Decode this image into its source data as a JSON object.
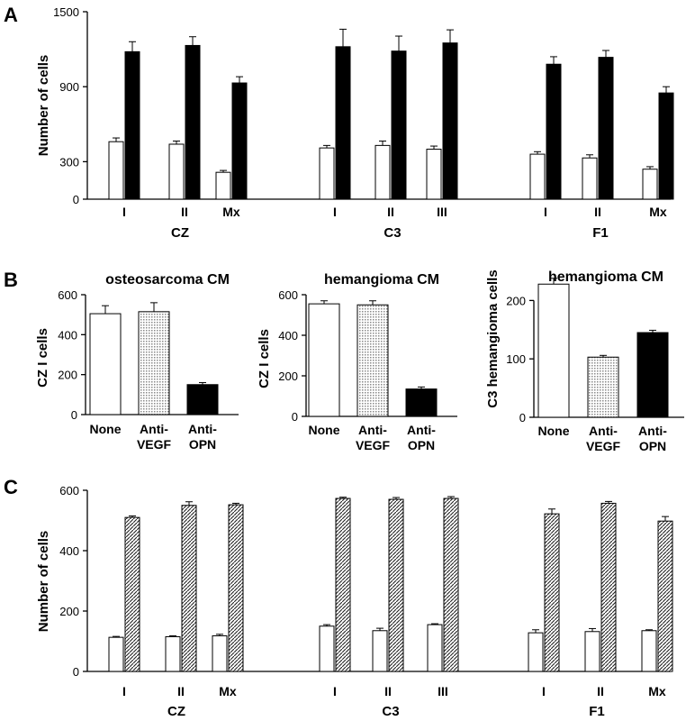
{
  "chart_data": [
    {
      "panel": "A",
      "type": "bar",
      "ylabel": "Number of cells",
      "ylim": [
        0,
        1500
      ],
      "yticks": [
        0,
        300,
        900,
        1500
      ],
      "groups": [
        {
          "label": "CZ",
          "categories": [
            "I",
            "II",
            "Mx"
          ],
          "white": [
            460,
            440,
            215
          ],
          "white_err": [
            30,
            25,
            15
          ],
          "black": [
            1180,
            1230,
            930
          ],
          "black_err": [
            80,
            70,
            50
          ]
        },
        {
          "label": "C3",
          "categories": [
            "I",
            "II",
            "III"
          ],
          "white": [
            410,
            430,
            400
          ],
          "white_err": [
            20,
            35,
            25
          ],
          "black": [
            1220,
            1185,
            1250
          ],
          "black_err": [
            140,
            120,
            105
          ]
        },
        {
          "label": "F1",
          "categories": [
            "I",
            "II",
            "Mx"
          ],
          "white": [
            360,
            330,
            240
          ],
          "white_err": [
            20,
            25,
            20
          ],
          "black": [
            1080,
            1135,
            850
          ],
          "black_err": [
            60,
            55,
            50
          ]
        }
      ]
    },
    {
      "panel": "B",
      "type": "bar",
      "title": "osteosarcoma CM",
      "ylabel": "CZ I cells",
      "ylim": [
        0,
        600
      ],
      "yticks": [
        0,
        200,
        400,
        600
      ],
      "categories": [
        "None",
        "Anti-VEGF",
        "Anti-OPN"
      ],
      "values": [
        505,
        515,
        150
      ],
      "errors": [
        40,
        45,
        10
      ],
      "fills": [
        "white",
        "dotted",
        "black"
      ]
    },
    {
      "panel": "B",
      "type": "bar",
      "title": "hemangioma CM",
      "ylabel": "CZ I cells",
      "ylim": [
        0,
        600
      ],
      "yticks": [
        0,
        200,
        400,
        600
      ],
      "categories": [
        "None",
        "Anti-VEGF",
        "Anti-OPN"
      ],
      "values": [
        555,
        550,
        135
      ],
      "errors": [
        15,
        20,
        10
      ],
      "fills": [
        "white",
        "dotted",
        "black"
      ]
    },
    {
      "panel": "B",
      "type": "bar",
      "title": "hemangioma CM",
      "ylabel": "C3 hemangioma cells",
      "ylim": [
        0,
        250
      ],
      "yticks": [
        0,
        100,
        200
      ],
      "categories": [
        "None",
        "Anti-VEGF",
        "Anti-OPN"
      ],
      "values": [
        228,
        103,
        145
      ],
      "errors": [
        10,
        3,
        4
      ],
      "fills": [
        "white",
        "dotted",
        "black"
      ]
    },
    {
      "panel": "C",
      "type": "bar",
      "ylabel": "Number of cells",
      "ylim": [
        0,
        600
      ],
      "yticks": [
        0,
        200,
        400,
        600
      ],
      "groups": [
        {
          "label": "CZ",
          "categories": [
            "I",
            "II",
            "Mx"
          ],
          "white": [
            113,
            115,
            118
          ],
          "white_err": [
            3,
            3,
            5
          ],
          "hatched": [
            510,
            550,
            552
          ],
          "hatched_err": [
            5,
            12,
            5
          ]
        },
        {
          "label": "C3",
          "categories": [
            "I",
            "II",
            "III"
          ],
          "white": [
            150,
            135,
            155
          ],
          "white_err": [
            5,
            8,
            3
          ],
          "hatched": [
            573,
            570,
            573
          ],
          "hatched_err": [
            4,
            6,
            6
          ]
        },
        {
          "label": "F1",
          "categories": [
            "I",
            "II",
            "Mx"
          ],
          "white": [
            128,
            132,
            135
          ],
          "white_err": [
            10,
            10,
            3
          ],
          "hatched": [
            522,
            557,
            498
          ],
          "hatched_err": [
            16,
            6,
            15
          ]
        }
      ]
    }
  ],
  "figure": {
    "panel_letters": [
      "A",
      "B",
      "C"
    ],
    "fill_colors": {
      "white": "#ffffff",
      "black": "#000000",
      "edge": "#000000",
      "dots": "#8a8a8a",
      "hatch": "#222222"
    }
  }
}
